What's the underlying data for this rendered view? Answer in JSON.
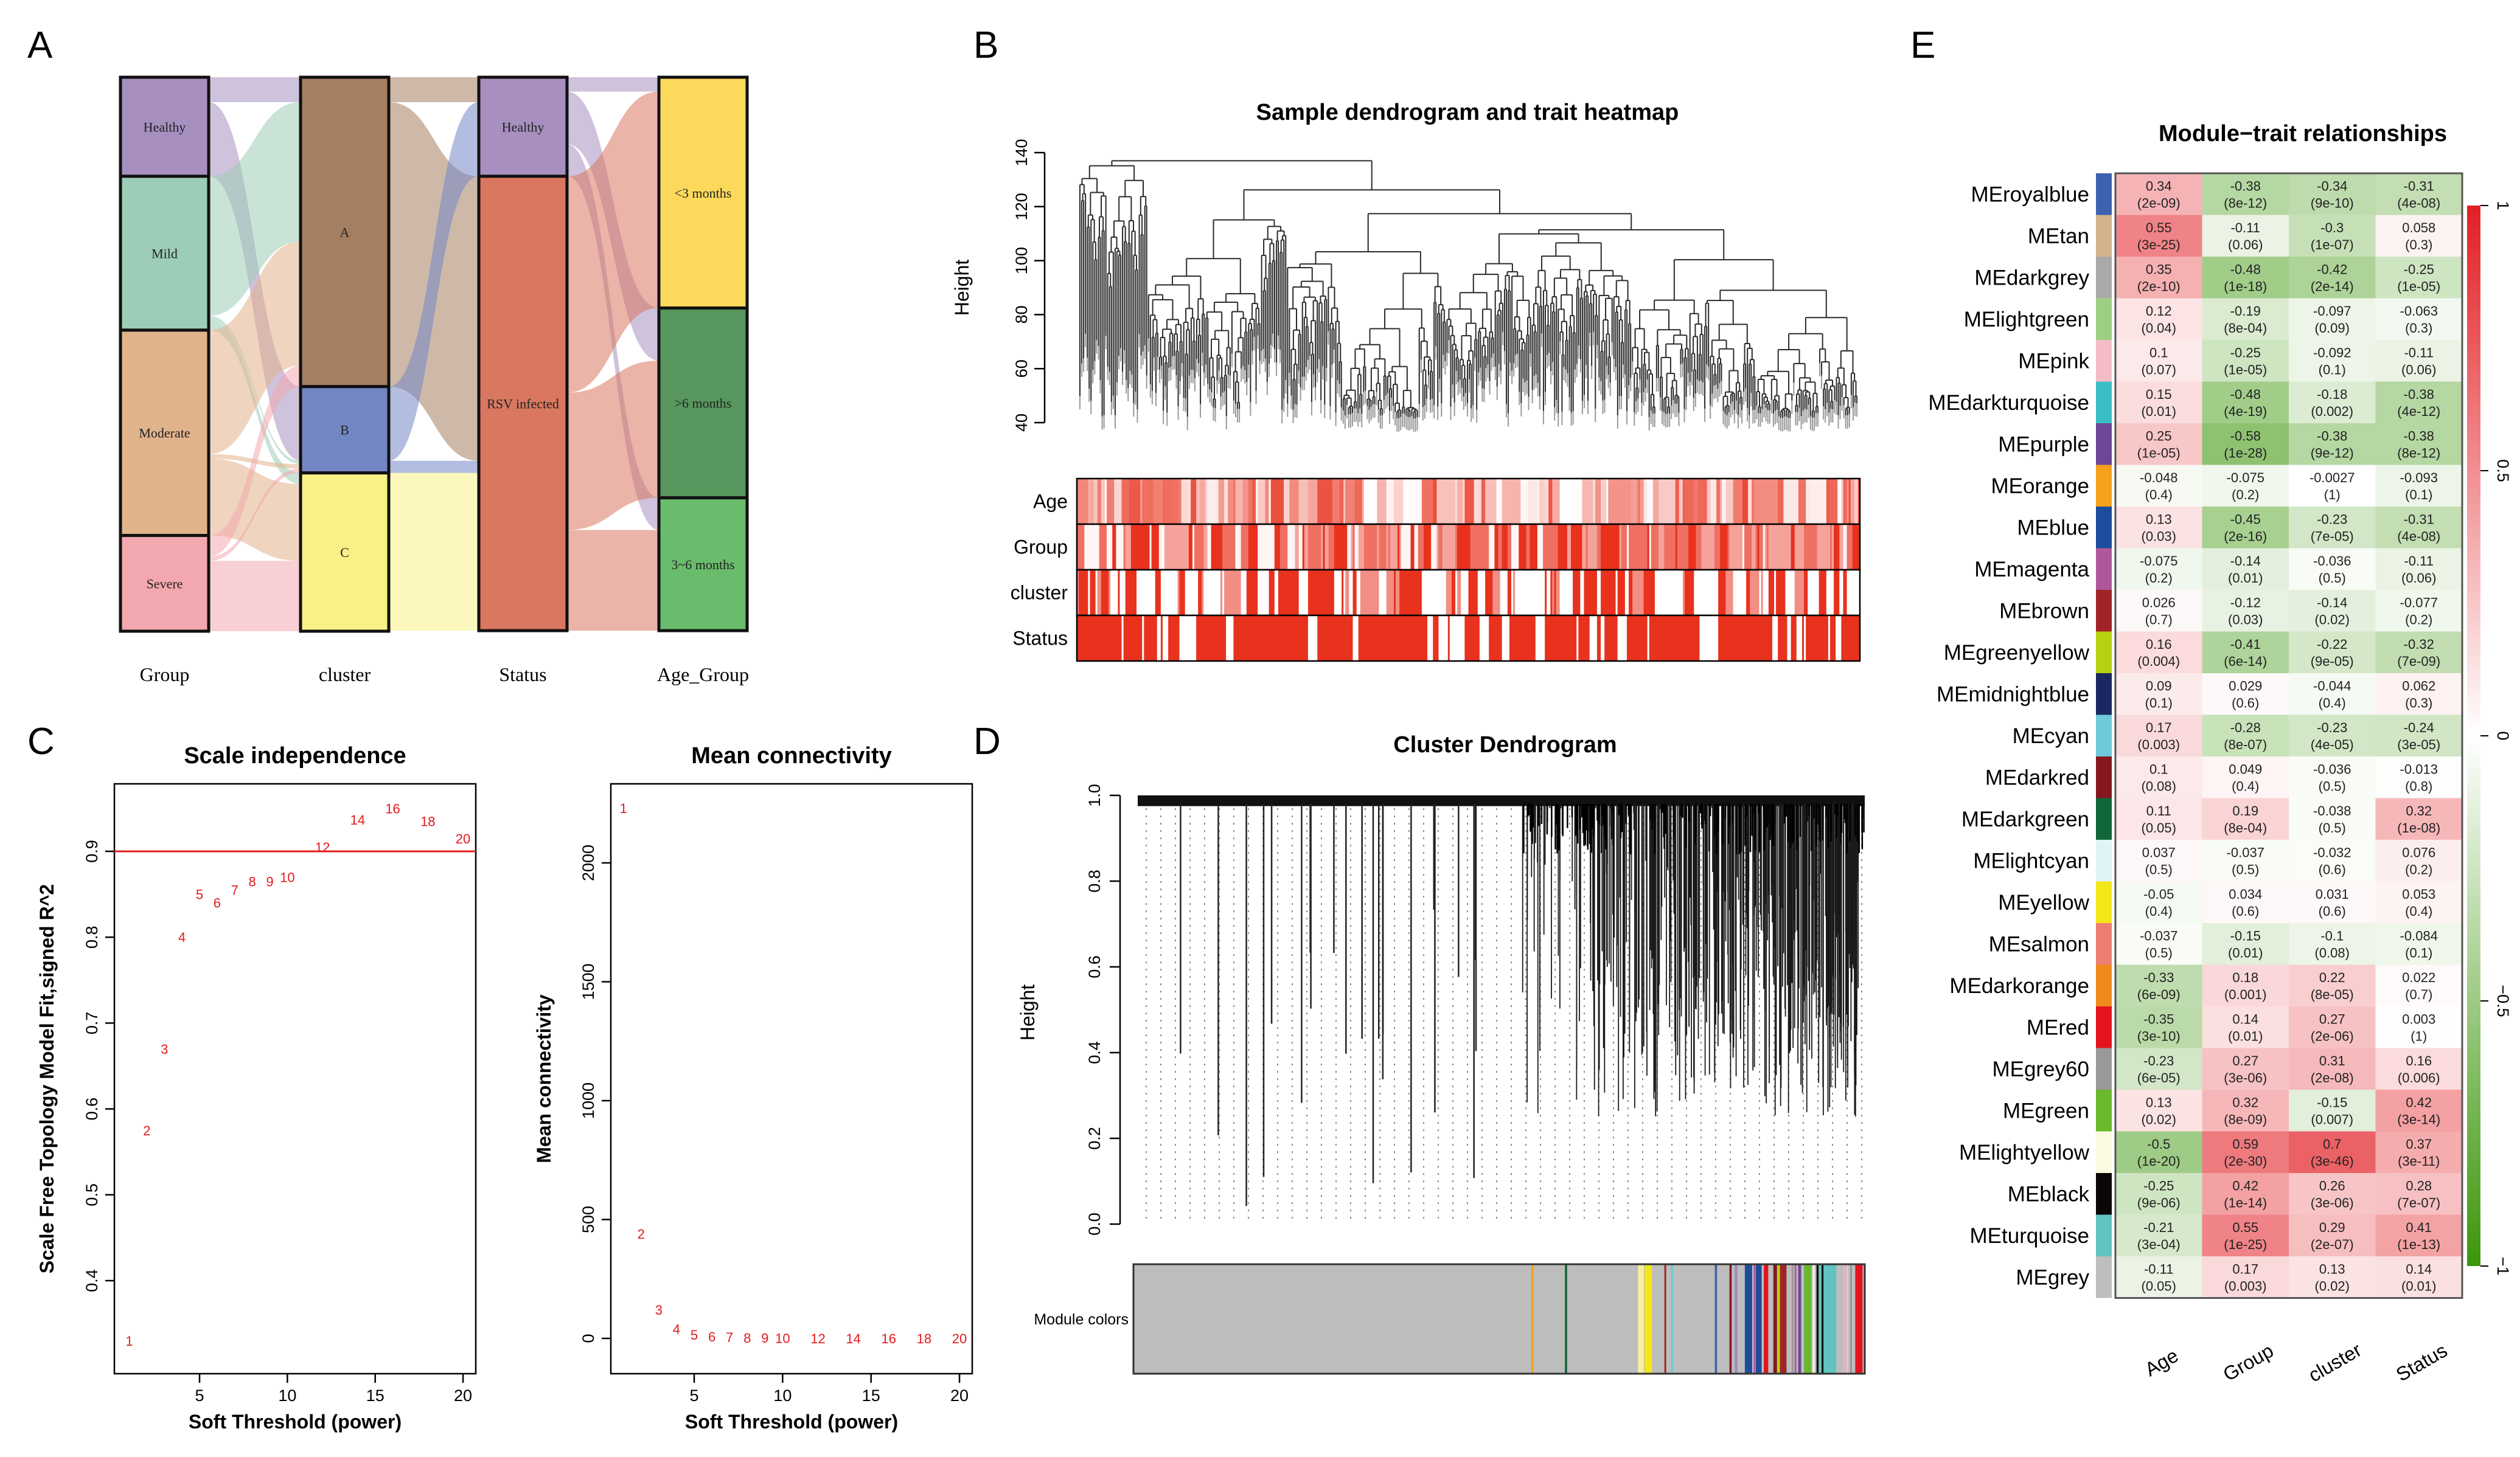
{
  "figure": {
    "panel_labels": [
      "A",
      "B",
      "C",
      "D",
      "E"
    ]
  },
  "chart_data": [
    {
      "panel": "A",
      "type": "sankey",
      "axes": [
        "Group",
        "cluster",
        "Status",
        "Age_Group"
      ],
      "nodes": [
        [
          {
            "name": "Healthy",
            "value": 17.9,
            "color": "#a78fbf"
          },
          {
            "name": "Mild",
            "value": 27.8,
            "color": "#9ccdb6"
          },
          {
            "name": "Moderate",
            "value": 37.1,
            "color": "#e1b38b"
          },
          {
            "name": "Severe",
            "value": 17.3,
            "color": "#f3a7ae"
          }
        ],
        [
          {
            "name": "A",
            "value": 55.9,
            "color": "#a57f62"
          },
          {
            "name": "B",
            "value": 15.6,
            "color": "#7386c4"
          },
          {
            "name": "C",
            "value": 28.6,
            "color": "#f9f185"
          }
        ],
        [
          {
            "name": "Healthy",
            "value": 17.9,
            "color": "#a78fbf"
          },
          {
            "name": "RSV infected",
            "value": 82.1,
            "color": "#d97760"
          }
        ],
        [
          {
            "name": "<3 months",
            "value": 41.7,
            "color": "#fcd95b"
          },
          {
            "name": ">6 months",
            "value": 34.3,
            "color": "#58975e"
          },
          {
            "name": "3~6 months",
            "value": 24.0,
            "color": "#69bc6b"
          }
        ]
      ],
      "links": [
        [
          {
            "source": "Healthy",
            "target": "A",
            "value": 4.5
          },
          {
            "source": "Healthy",
            "target": "B",
            "value": 13.4
          },
          {
            "source": "Mild",
            "target": "A",
            "value": 25.2
          },
          {
            "source": "Mild",
            "target": "B",
            "value": 0.6
          },
          {
            "source": "Mild",
            "target": "C",
            "value": 2.0
          },
          {
            "source": "Moderate",
            "target": "A",
            "value": 22.4
          },
          {
            "source": "Moderate",
            "target": "B",
            "value": 0.8
          },
          {
            "source": "Moderate",
            "target": "C",
            "value": 13.9
          },
          {
            "source": "Severe",
            "target": "A",
            "value": 3.8
          },
          {
            "source": "Severe",
            "target": "B",
            "value": 0.8
          },
          {
            "source": "Severe",
            "target": "C",
            "value": 12.7
          }
        ],
        [
          {
            "source": "A",
            "target": "Healthy",
            "value": 4.5
          },
          {
            "source": "A",
            "target": "RSV infected",
            "value": 51.4
          },
          {
            "source": "B",
            "target": "Healthy",
            "value": 13.4
          },
          {
            "source": "B",
            "target": "RSV infected",
            "value": 2.2
          },
          {
            "source": "C",
            "target": "RSV infected",
            "value": 28.5
          }
        ],
        [
          {
            "source": "Healthy",
            "target": "<3 months",
            "value": 2.6
          },
          {
            "source": "Healthy",
            "target": ">6 months",
            "value": 9.5
          },
          {
            "source": "Healthy",
            "target": "3~6 months",
            "value": 5.8
          },
          {
            "source": "RSV infected",
            "target": "<3 months",
            "value": 39.1
          },
          {
            "source": "RSV infected",
            "target": ">6 months",
            "value": 24.8
          },
          {
            "source": "RSV infected",
            "target": "3~6 months",
            "value": 18.2
          }
        ]
      ]
    },
    {
      "panel": "B",
      "type": "heatmap",
      "title": "Sample dendrogram and trait heatmap",
      "ylabel": "Height",
      "ylim": [
        40,
        140
      ],
      "yticks": [
        "40",
        "60",
        "80",
        "100",
        "120",
        "140"
      ],
      "traits": [
        "Age",
        "Group",
        "cluster",
        "Status"
      ],
      "high_color": "#e8321e",
      "low_color": "#ffffff"
    },
    {
      "panel": "C",
      "type": "scatter",
      "title": "Scale independence",
      "xlabel": "Soft Threshold (power)",
      "ylabel": "Scale Free Topology Model Fit,signed R^2",
      "x": [
        1,
        2,
        3,
        4,
        5,
        6,
        7,
        8,
        9,
        10,
        12,
        14,
        16,
        18,
        20
      ],
      "y": [
        0.33,
        0.575,
        0.67,
        0.8,
        0.85,
        0.84,
        0.855,
        0.865,
        0.865,
        0.87,
        0.905,
        0.937,
        0.95,
        0.935,
        0.915
      ],
      "labels": [
        "1",
        "2",
        "3",
        "4",
        "5",
        "6",
        "7",
        "8",
        "9",
        "10",
        "12",
        "14",
        "16",
        "18",
        "20"
      ],
      "hline": 0.9,
      "xticks": [
        "5",
        "10",
        "15",
        "20"
      ],
      "yticks": [
        "0.4",
        "0.5",
        "0.6",
        "0.7",
        "0.8",
        "0.9"
      ],
      "point_color": "#e41a1c"
    },
    {
      "panel": "C",
      "type": "scatter",
      "title": "Mean connectivity",
      "xlabel": "Soft Threshold (power)",
      "ylabel": "Mean connectivity",
      "x": [
        1,
        2,
        3,
        4,
        5,
        6,
        7,
        8,
        9,
        10,
        12,
        14,
        16,
        18,
        20
      ],
      "y": [
        2230,
        440,
        120,
        40,
        15,
        8,
        5,
        3,
        2,
        1,
        0.5,
        0.3,
        0.2,
        0.1,
        0.1
      ],
      "labels": [
        "1",
        "2",
        "3",
        "4",
        "5",
        "6",
        "7",
        "8",
        "9",
        "10",
        "12",
        "14",
        "16",
        "18",
        "20"
      ],
      "xticks": [
        "5",
        "10",
        "15",
        "20"
      ],
      "yticks": [
        "0",
        "500",
        "1000",
        "1500",
        "2000"
      ],
      "point_color": "#e41a1c"
    },
    {
      "panel": "D",
      "type": "dendrogram",
      "title": "Cluster Dendrogram",
      "ylabel": "Height",
      "ylim": [
        0,
        1
      ],
      "yticks": [
        "0.0",
        "0.2",
        "0.4",
        "0.6",
        "0.8",
        "1.0"
      ],
      "color_bar_label": "Module colors"
    },
    {
      "panel": "E",
      "type": "heatmap",
      "title": "Module−trait relationships",
      "columns": [
        "Age",
        "Group",
        "cluster",
        "Status"
      ],
      "legend_ticks": [
        "1",
        "0.5",
        "0",
        "−0.5",
        "−1"
      ],
      "positive_color": "#e31e24",
      "negative_color": "#3c960a",
      "rows": [
        {
          "name": "MEroyalblue",
          "color": "#3d62ad",
          "r": [
            "0.34",
            "-0.38",
            "-0.34",
            "-0.31"
          ],
          "p": [
            "(2e-09)",
            "(8e-12)",
            "(9e-10)",
            "(4e-08)"
          ]
        },
        {
          "name": "MEtan",
          "color": "#d2b48c",
          "r": [
            "0.55",
            "-0.11",
            "-0.3",
            "0.058"
          ],
          "p": [
            "(3e-25)",
            "(0.06)",
            "(1e-07)",
            "(0.3)"
          ]
        },
        {
          "name": "MEdarkgrey",
          "color": "#a9a9a9",
          "r": [
            "0.35",
            "-0.48",
            "-0.42",
            "-0.25"
          ],
          "p": [
            "(2e-10)",
            "(1e-18)",
            "(2e-14)",
            "(1e-05)"
          ]
        },
        {
          "name": "MElightgreen",
          "color": "#9ccf84",
          "r": [
            "0.12",
            "-0.19",
            "-0.097",
            "-0.063"
          ],
          "p": [
            "(0.04)",
            "(8e-04)",
            "(0.09)",
            "(0.3)"
          ]
        },
        {
          "name": "MEpink",
          "color": "#f5bcc8",
          "r": [
            "0.1",
            "-0.25",
            "-0.092",
            "-0.11"
          ],
          "p": [
            "(0.07)",
            "(1e-05)",
            "(0.1)",
            "(0.06)"
          ]
        },
        {
          "name": "MEdarkturquoise",
          "color": "#3bbec3",
          "r": [
            "0.15",
            "-0.48",
            "-0.18",
            "-0.38"
          ],
          "p": [
            "(0.01)",
            "(4e-19)",
            "(0.002)",
            "(4e-12)"
          ]
        },
        {
          "name": "MEpurple",
          "color": "#6e4697",
          "r": [
            "0.25",
            "-0.58",
            "-0.38",
            "-0.38"
          ],
          "p": [
            "(1e-05)",
            "(1e-28)",
            "(9e-12)",
            "(8e-12)"
          ]
        },
        {
          "name": "MEorange",
          "color": "#f4a11d",
          "r": [
            "-0.048",
            "-0.075",
            "-0.0027",
            "-0.093"
          ],
          "p": [
            "(0.4)",
            "(0.2)",
            "(1)",
            "(0.1)"
          ]
        },
        {
          "name": "MEblue",
          "color": "#1e4c9c",
          "r": [
            "0.13",
            "-0.45",
            "-0.23",
            "-0.31"
          ],
          "p": [
            "(0.03)",
            "(2e-16)",
            "(7e-05)",
            "(4e-08)"
          ]
        },
        {
          "name": "MEmagenta",
          "color": "#b0579c",
          "r": [
            "-0.075",
            "-0.14",
            "-0.036",
            "-0.11"
          ],
          "p": [
            "(0.2)",
            "(0.01)",
            "(0.5)",
            "(0.06)"
          ]
        },
        {
          "name": "MEbrown",
          "color": "#a12527",
          "r": [
            "0.026",
            "-0.12",
            "-0.14",
            "-0.077"
          ],
          "p": [
            "(0.7)",
            "(0.03)",
            "(0.02)",
            "(0.2)"
          ]
        },
        {
          "name": "MEgreenyellow",
          "color": "#b6d10f",
          "r": [
            "0.16",
            "-0.41",
            "-0.22",
            "-0.32"
          ],
          "p": [
            "(0.004)",
            "(6e-14)",
            "(9e-05)",
            "(7e-09)"
          ]
        },
        {
          "name": "MEmidnightblue",
          "color": "#1c2660",
          "r": [
            "0.09",
            "0.029",
            "-0.044",
            "0.062"
          ],
          "p": [
            "(0.1)",
            "(0.6)",
            "(0.4)",
            "(0.3)"
          ]
        },
        {
          "name": "MEcyan",
          "color": "#70c9d9",
          "r": [
            "0.17",
            "-0.28",
            "-0.23",
            "-0.24"
          ],
          "p": [
            "(0.003)",
            "(8e-07)",
            "(4e-05)",
            "(3e-05)"
          ]
        },
        {
          "name": "MEdarkred",
          "color": "#86171e",
          "r": [
            "0.1",
            "0.049",
            "-0.036",
            "-0.013"
          ],
          "p": [
            "(0.08)",
            "(0.4)",
            "(0.5)",
            "(0.8)"
          ]
        },
        {
          "name": "MEdarkgreen",
          "color": "#0f6637",
          "r": [
            "0.11",
            "0.19",
            "-0.038",
            "0.32"
          ],
          "p": [
            "(0.05)",
            "(8e-04)",
            "(0.5)",
            "(1e-08)"
          ]
        },
        {
          "name": "MElightcyan",
          "color": "#e0f3f7",
          "r": [
            "0.037",
            "-0.037",
            "-0.032",
            "0.076"
          ],
          "p": [
            "(0.5)",
            "(0.5)",
            "(0.6)",
            "(0.2)"
          ]
        },
        {
          "name": "MEyellow",
          "color": "#f4e718",
          "r": [
            "-0.05",
            "0.034",
            "0.031",
            "0.053"
          ],
          "p": [
            "(0.4)",
            "(0.6)",
            "(0.6)",
            "(0.4)"
          ]
        },
        {
          "name": "MEsalmon",
          "color": "#ee7e72",
          "r": [
            "-0.037",
            "-0.15",
            "-0.1",
            "-0.084"
          ],
          "p": [
            "(0.5)",
            "(0.01)",
            "(0.08)",
            "(0.1)"
          ]
        },
        {
          "name": "MEdarkorange",
          "color": "#f18a1c",
          "r": [
            "-0.33",
            "0.18",
            "0.22",
            "0.022"
          ],
          "p": [
            "(6e-09)",
            "(0.001)",
            "(8e-05)",
            "(0.7)"
          ]
        },
        {
          "name": "MEred",
          "color": "#e4131f",
          "r": [
            "-0.35",
            "0.14",
            "0.27",
            "0.003"
          ],
          "p": [
            "(3e-10)",
            "(0.01)",
            "(2e-06)",
            "(1)"
          ]
        },
        {
          "name": "MEgrey60",
          "color": "#999999",
          "r": [
            "-0.23",
            "0.27",
            "0.31",
            "0.16"
          ],
          "p": [
            "(6e-05)",
            "(3e-06)",
            "(2e-08)",
            "(0.006)"
          ]
        },
        {
          "name": "MEgreen",
          "color": "#6ab82c",
          "r": [
            "0.13",
            "0.32",
            "-0.15",
            "0.42"
          ],
          "p": [
            "(0.02)",
            "(8e-09)",
            "(0.007)",
            "(3e-14)"
          ]
        },
        {
          "name": "MElightyellow",
          "color": "#fcf9e2",
          "r": [
            "-0.5",
            "0.59",
            "0.7",
            "0.37"
          ],
          "p": [
            "(1e-20)",
            "(2e-30)",
            "(3e-46)",
            "(3e-11)"
          ]
        },
        {
          "name": "MEblack",
          "color": "#0a0606",
          "r": [
            "-0.25",
            "0.42",
            "0.26",
            "0.28"
          ],
          "p": [
            "(9e-06)",
            "(1e-14)",
            "(3e-06)",
            "(7e-07)"
          ]
        },
        {
          "name": "MEturquoise",
          "color": "#61c4c0",
          "r": [
            "-0.21",
            "0.55",
            "0.29",
            "0.41"
          ],
          "p": [
            "(3e-04)",
            "(1e-25)",
            "(2e-07)",
            "(1e-13)"
          ]
        },
        {
          "name": "MEgrey",
          "color": "#bebebe",
          "r": [
            "-0.11",
            "0.17",
            "0.13",
            "0.14"
          ],
          "p": [
            "(0.05)",
            "(0.003)",
            "(0.02)",
            "(0.01)"
          ]
        }
      ]
    }
  ]
}
